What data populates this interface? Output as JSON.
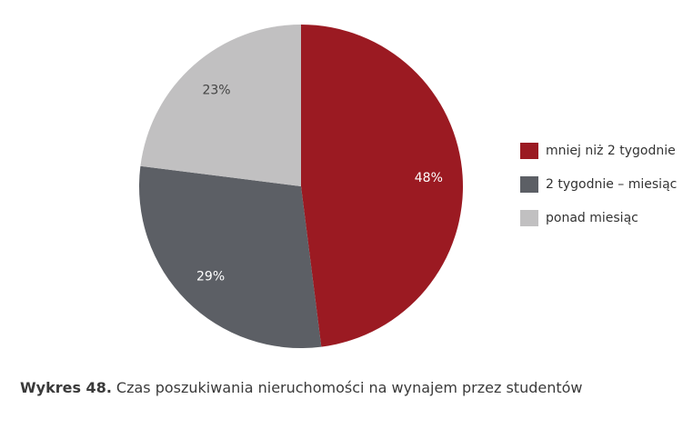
{
  "chart_data": {
    "type": "pie",
    "categories": [
      "mniej niż 2 tygodnie",
      "2 tygodnie – miesiąc",
      "ponad miesiąc"
    ],
    "values": [
      48,
      29,
      23
    ],
    "value_labels": [
      "48%",
      "29%",
      "23%"
    ],
    "colors": [
      "#9b1a22",
      "#5c5f65",
      "#c1c0c1"
    ],
    "legend": "right",
    "caption_label": "Wykres 48.",
    "caption": "Czas poszukiwania nieruchomości na wynajem przez studentów"
  }
}
